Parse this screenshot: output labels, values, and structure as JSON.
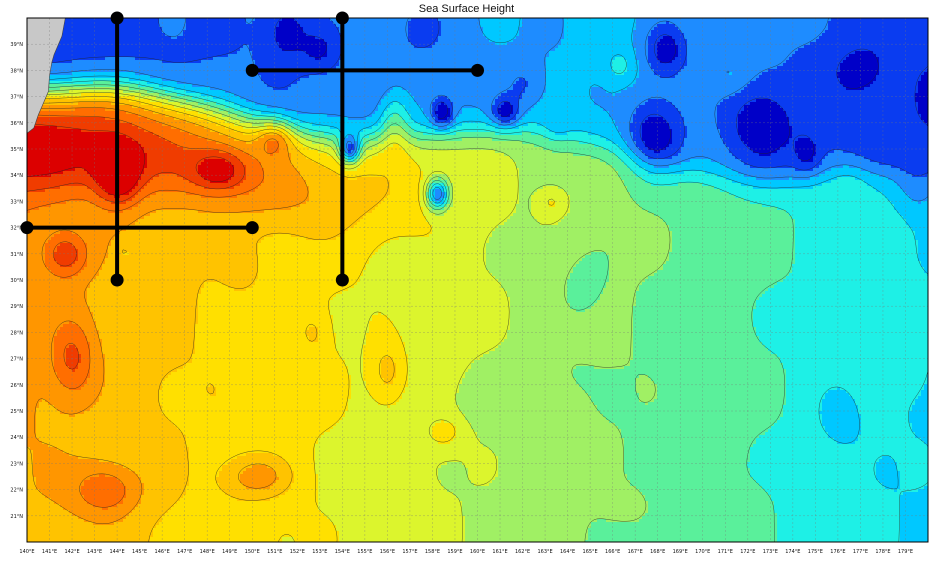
{
  "title": "Sea Surface Height",
  "map": {
    "lon_range": [
      140,
      180
    ],
    "lat_range": [
      20,
      40
    ],
    "x_ticks": [
      "140°E",
      "141°E",
      "142°E",
      "143°E",
      "144°E",
      "145°E",
      "146°E",
      "147°E",
      "148°E",
      "149°E",
      "150°E",
      "151°E",
      "152°E",
      "153°E",
      "154°E",
      "155°E",
      "156°E",
      "157°E",
      "158°E",
      "159°E",
      "160°E",
      "161°E",
      "162°E",
      "163°E",
      "164°E",
      "165°E",
      "166°E",
      "167°E",
      "168°E",
      "169°E",
      "170°E",
      "171°E",
      "172°E",
      "173°E",
      "174°E",
      "175°E",
      "176°E",
      "177°E",
      "178°E",
      "179°E"
    ],
    "y_ticks": [
      "21°N",
      "22°N",
      "23°N",
      "24°N",
      "25°N",
      "26°N",
      "27°N",
      "28°N",
      "29°N",
      "30°N",
      "31°N",
      "32°N",
      "33°N",
      "34°N",
      "35°N",
      "36°N",
      "37°N",
      "38°N",
      "39°N"
    ],
    "grid": true,
    "colormap": [
      "#0000c8",
      "#0a3cf0",
      "#1e8cff",
      "#00c8ff",
      "#1ef0e6",
      "#5af09b",
      "#a0f064",
      "#dcf52d",
      "#ffe000",
      "#ffc300",
      "#ff9600",
      "#ff6e00",
      "#f03c00",
      "#dc0000"
    ],
    "land_color": "#c8c8c8",
    "marker_color": "#000000",
    "lines": [
      {
        "name": "vertical-transect-144E",
        "lon": [
          144,
          144
        ],
        "lat": [
          40,
          30
        ]
      },
      {
        "name": "vertical-transect-154E",
        "lon": [
          154,
          154
        ],
        "lat": [
          40,
          30
        ]
      },
      {
        "name": "horizontal-transect-38N",
        "lon": [
          150,
          160
        ],
        "lat": [
          38,
          38
        ]
      },
      {
        "name": "horizontal-transect-32N",
        "lon": [
          140,
          150
        ],
        "lat": [
          32,
          32
        ]
      }
    ]
  }
}
